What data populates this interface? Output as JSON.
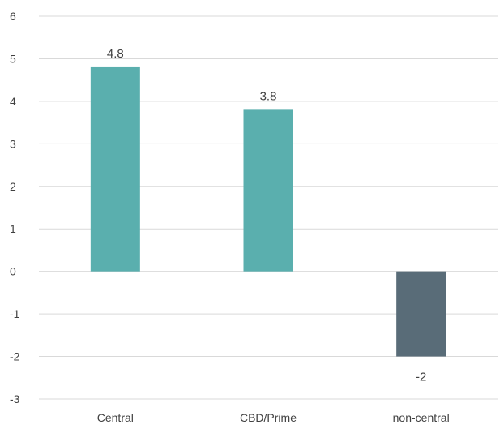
{
  "chart_data": {
    "type": "bar",
    "title": "",
    "xlabel": "",
    "ylabel": "",
    "categories": [
      "Central",
      "CBD/Prime",
      "non-central"
    ],
    "values": [
      4.8,
      3.8,
      -2
    ],
    "data_labels": [
      "4.8",
      "3.8",
      "-2"
    ],
    "ylim": [
      -3,
      6
    ],
    "yticks": [
      6,
      5,
      4,
      3,
      2,
      1,
      0,
      -1,
      -2,
      -3
    ],
    "grid": true,
    "legend": "none",
    "colors": {
      "positive": "#5aafae",
      "negative": "#596c78",
      "grid": "#d9d9d9",
      "text": "#404040"
    }
  }
}
